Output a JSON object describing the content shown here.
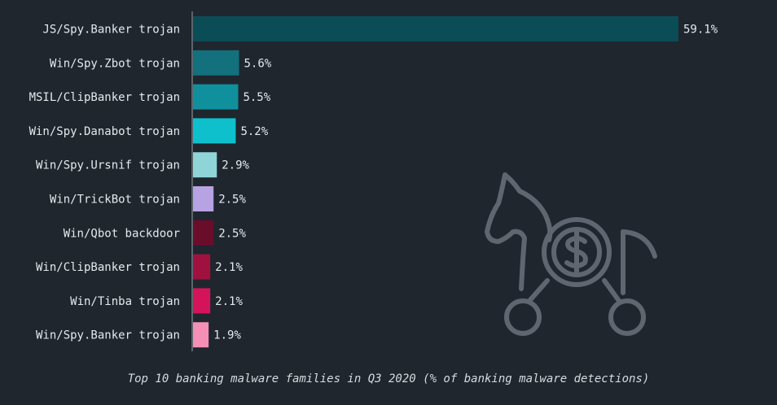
{
  "chart_data": {
    "type": "bar",
    "orientation": "horizontal",
    "categories": [
      "JS/Spy.Banker trojan",
      "Win/Spy.Zbot trojan",
      "MSIL/ClipBanker trojan",
      "Win/Spy.Danabot trojan",
      "Win/Spy.Ursnif trojan",
      "Win/TrickBot trojan",
      "Win/Qbot backdoor",
      "Win/ClipBanker trojan",
      "Win/Tinba trojan",
      "Win/Spy.Banker trojan"
    ],
    "values": [
      59.1,
      5.6,
      5.5,
      5.2,
      2.9,
      2.5,
      2.5,
      2.1,
      2.1,
      1.9
    ],
    "value_labels": [
      "59.1%",
      "5.6%",
      "5.5%",
      "5.2%",
      "2.9%",
      "2.5%",
      "2.5%",
      "2.1%",
      "2.1%",
      "1.9%"
    ],
    "colors": [
      "#0b4d56",
      "#13707d",
      "#10909d",
      "#0ec0cc",
      "#8fd4d6",
      "#b7a2e2",
      "#6a0d2a",
      "#a0113f",
      "#d3145b",
      "#f58fb5"
    ],
    "caption": "Top 10 banking malware families in Q3 2020 (% of banking malware detections)",
    "xlim": [
      0,
      60
    ],
    "grid": false
  },
  "icon": "trojan-horse-dollar-icon",
  "icon_color": "#5e6670"
}
